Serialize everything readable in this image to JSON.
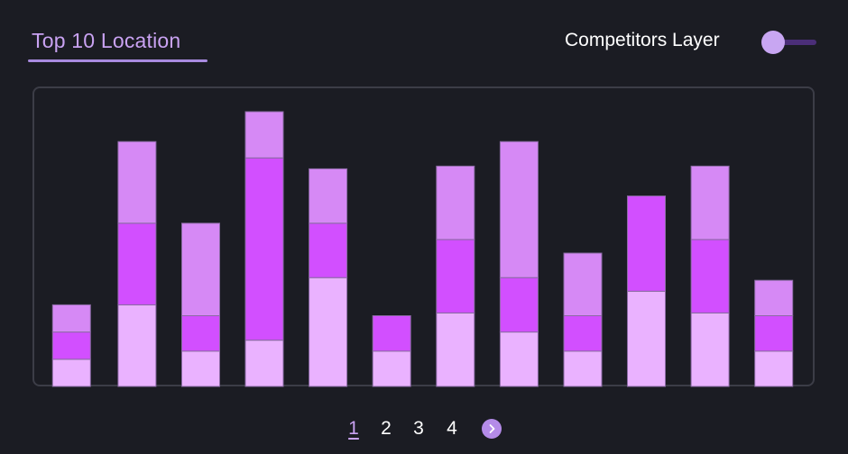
{
  "header": {
    "title": "Top 10 Location",
    "layer_label": "Competitors Layer",
    "layer_toggle_on": false
  },
  "colors": {
    "background": "#1b1c23",
    "accent": "#c9a2f2",
    "series_bottom": "#eab2ff",
    "series_middle": "#d24fff",
    "series_top": "#d689f5"
  },
  "pagination": {
    "pages": [
      "1",
      "2",
      "3",
      "4"
    ],
    "active": "1",
    "next_icon": "chevron-right-icon"
  },
  "chart_data": {
    "type": "bar",
    "stacked": true,
    "categories": [
      "",
      "",
      "",
      "",
      "",
      "",
      "",
      "",
      "",
      "",
      "",
      ""
    ],
    "series": [
      {
        "values": [
          1.0,
          3.0,
          1.3,
          1.7,
          4.0,
          1.3,
          2.7,
          2.0,
          1.3,
          3.5,
          2.7,
          1.3
        ]
      },
      {
        "values": [
          1.0,
          3.0,
          1.3,
          6.7,
          2.0,
          1.3,
          2.7,
          2.0,
          1.3,
          3.5,
          2.7,
          1.3
        ]
      },
      {
        "values": [
          1.0,
          3.0,
          3.4,
          1.7,
          2.0,
          0.0,
          2.7,
          5.0,
          2.3,
          0.0,
          2.7,
          1.3
        ]
      }
    ],
    "ylim": [
      0,
      10
    ],
    "grid": false,
    "legend": "none"
  }
}
